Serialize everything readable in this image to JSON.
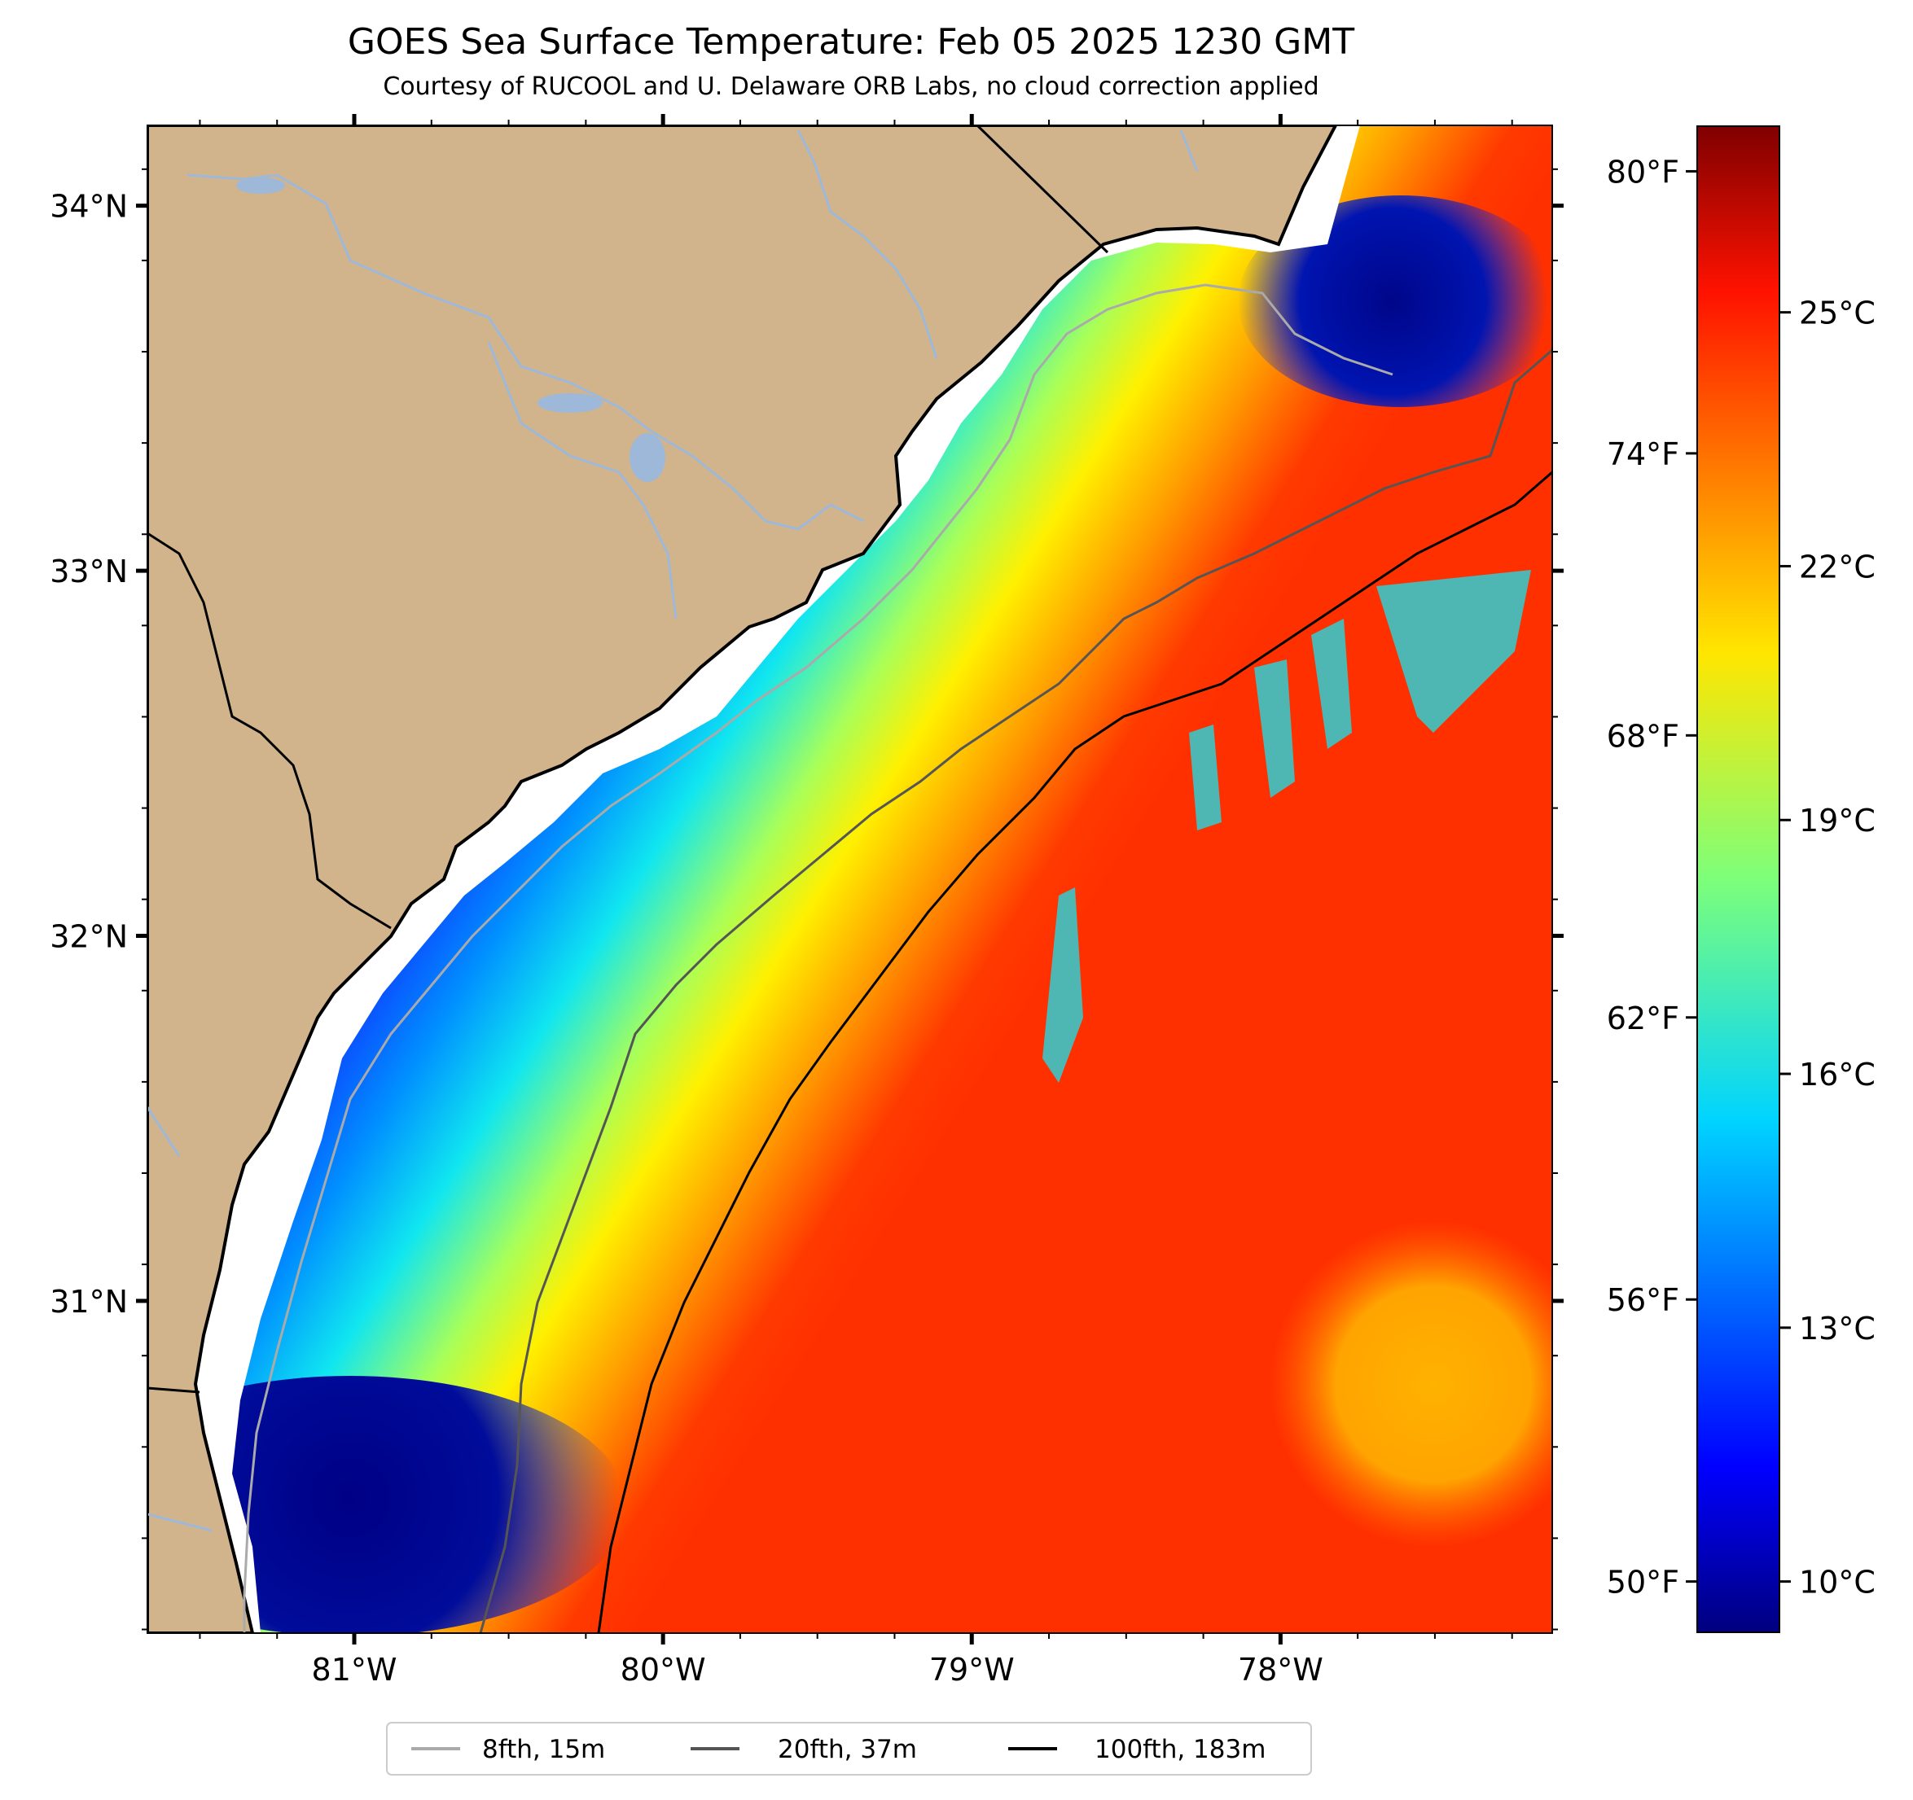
{
  "title": "GOES Sea Surface Temperature: Feb 05 2025 1230 GMT",
  "subtitle": "Courtesy of RUCOOL and U. Delaware ORB Labs, no cloud correction applied",
  "map": {
    "lon_range": [
      -81.67,
      -77.12
    ],
    "lat_range": [
      30.09,
      34.22
    ],
    "lat_ticks": [
      {
        "value": 34,
        "label": "34°N"
      },
      {
        "value": 33,
        "label": "33°N"
      },
      {
        "value": 32,
        "label": "32°N"
      },
      {
        "value": 31,
        "label": "31°N"
      }
    ],
    "lon_ticks": [
      {
        "value": -81,
        "label": "81°W"
      },
      {
        "value": -80,
        "label": "80°W"
      },
      {
        "value": -79,
        "label": "79°W"
      },
      {
        "value": -78,
        "label": "78°W"
      }
    ],
    "land_color": "#d2b48c",
    "river_color": "#9db8d9"
  },
  "colorbar": {
    "colormap": "jet",
    "celsius_range": [
      9.4,
      27.2
    ],
    "fahrenheit_ticks": [
      {
        "value": 80,
        "label": "80°F"
      },
      {
        "value": 74,
        "label": "74°F"
      },
      {
        "value": 68,
        "label": "68°F"
      },
      {
        "value": 62,
        "label": "62°F"
      },
      {
        "value": 56,
        "label": "56°F"
      },
      {
        "value": 50,
        "label": "50°F"
      }
    ],
    "celsius_ticks": [
      {
        "value": 25,
        "label": "25°C"
      },
      {
        "value": 22,
        "label": "22°C"
      },
      {
        "value": 19,
        "label": "19°C"
      },
      {
        "value": 16,
        "label": "16°C"
      },
      {
        "value": 13,
        "label": "13°C"
      },
      {
        "value": 10,
        "label": "10°C"
      }
    ]
  },
  "legend": {
    "items": [
      {
        "label": "8fth, 15m",
        "color": "#aaaaaa"
      },
      {
        "label": "20fth, 37m",
        "color": "#555555"
      },
      {
        "label": "100fth, 183m",
        "color": "#000000"
      }
    ]
  }
}
